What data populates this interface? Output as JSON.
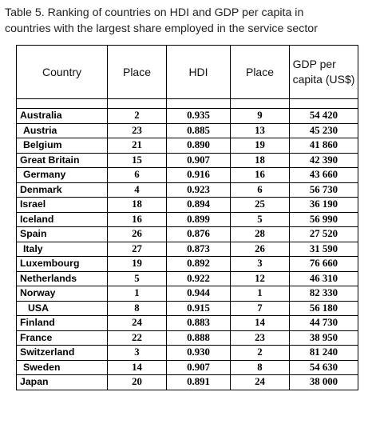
{
  "caption": {
    "line1": "Table 5. Ranking of countries on HDI and GDP per capita in",
    "line2": "countries with the largest share employed in the service sector"
  },
  "headers": {
    "country": "Country",
    "place_hdi": "Place",
    "hdi": "HDI",
    "place_gdp": "Place",
    "gdp_line1": "GDP per",
    "gdp_line2": "capita (US$)"
  },
  "rows": [
    {
      "country": "Australia",
      "place_hdi": "2",
      "hdi": "0.935",
      "place_gdp": "9",
      "gdp": "54 420",
      "indent": 0
    },
    {
      "country": "Austria",
      "place_hdi": "23",
      "hdi": "0.885",
      "place_gdp": "13",
      "gdp": "45 230",
      "indent": 1
    },
    {
      "country": "Belgium",
      "place_hdi": "21",
      "hdi": "0.890",
      "place_gdp": "19",
      "gdp": "41 860",
      "indent": 1
    },
    {
      "country": "Great Britain",
      "place_hdi": "15",
      "hdi": "0.907",
      "place_gdp": "18",
      "gdp": "42 390",
      "indent": 0
    },
    {
      "country": "Germany",
      "place_hdi": "6",
      "hdi": "0.916",
      "place_gdp": "16",
      "gdp": "43 660",
      "indent": 1
    },
    {
      "country": "Denmark",
      "place_hdi": "4",
      "hdi": "0.923",
      "place_gdp": "6",
      "gdp": "56 730",
      "indent": 0
    },
    {
      "country": "Israel",
      "place_hdi": "18",
      "hdi": "0.894",
      "place_gdp": "25",
      "gdp": "36 190",
      "indent": 0
    },
    {
      "country": "Iceland",
      "place_hdi": "16",
      "hdi": "0.899",
      "place_gdp": "5",
      "gdp": "56 990",
      "indent": 0
    },
    {
      "country": "Spain",
      "place_hdi": "26",
      "hdi": "0.876",
      "place_gdp": "28",
      "gdp": "27 520",
      "indent": 0
    },
    {
      "country": "Italy",
      "place_hdi": "27",
      "hdi": "0.873",
      "place_gdp": "26",
      "gdp": "31 590",
      "indent": 1
    },
    {
      "country": "Luxembourg",
      "place_hdi": "19",
      "hdi": "0.892",
      "place_gdp": "3",
      "gdp": "76 660",
      "indent": 0
    },
    {
      "country": "Netherlands",
      "place_hdi": "5",
      "hdi": "0.922",
      "place_gdp": "12",
      "gdp": "46 310",
      "indent": 0
    },
    {
      "country": "Norway",
      "place_hdi": "1",
      "hdi": "0.944",
      "place_gdp": "1",
      "gdp": "82 330",
      "indent": 0
    },
    {
      "country": "USA",
      "place_hdi": "8",
      "hdi": "0.915",
      "place_gdp": "7",
      "gdp": "56 180",
      "indent": 2
    },
    {
      "country": "Finland",
      "place_hdi": "24",
      "hdi": "0.883",
      "place_gdp": "14",
      "gdp": "44 730",
      "indent": 0
    },
    {
      "country": "France",
      "place_hdi": "22",
      "hdi": "0.888",
      "place_gdp": "23",
      "gdp": "38 950",
      "indent": 0
    },
    {
      "country": "Switzerland",
      "place_hdi": "3",
      "hdi": "0.930",
      "place_gdp": "2",
      "gdp": "81 240",
      "indent": 0
    },
    {
      "country": "Sweden",
      "place_hdi": "14",
      "hdi": "0.907",
      "place_gdp": "8",
      "gdp": "54 630",
      "indent": 1
    },
    {
      "country": "Japan",
      "place_hdi": "20",
      "hdi": "0.891",
      "place_gdp": "24",
      "gdp": "38 000",
      "indent": 0
    }
  ]
}
